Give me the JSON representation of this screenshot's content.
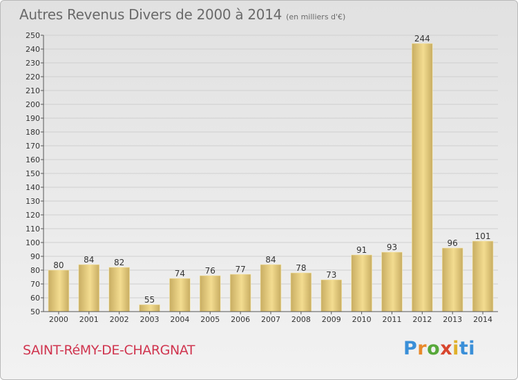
{
  "header": {
    "title": "Autres Revenus Divers de 2000 à 2014",
    "subtitle": "(en milliers d'€)"
  },
  "footer": {
    "commune": "SAINT-RéMY-DE-CHARGNAT",
    "brand": "Proxiti"
  },
  "colors": {
    "bar_light": "#f3dc90",
    "bar_dark": "#c8ad62",
    "grid": "#cfcfcf",
    "axis": "#555555",
    "commune_text": "#d0354f"
  },
  "chart_data": {
    "type": "bar",
    "title": "Autres Revenus Divers de 2000 à 2014",
    "subtitle": "(en milliers d'€)",
    "xlabel": "",
    "ylabel": "",
    "categories": [
      "2000",
      "2001",
      "2002",
      "2003",
      "2004",
      "2005",
      "2006",
      "2007",
      "2008",
      "2009",
      "2010",
      "2011",
      "2012",
      "2013",
      "2014"
    ],
    "values": [
      80,
      84,
      82,
      55,
      74,
      76,
      77,
      84,
      78,
      73,
      91,
      93,
      244,
      96,
      101
    ],
    "ylim": [
      50,
      250
    ],
    "yticks": [
      50,
      60,
      70,
      80,
      90,
      100,
      110,
      120,
      130,
      140,
      150,
      160,
      170,
      180,
      190,
      200,
      210,
      220,
      230,
      240,
      250
    ],
    "grid": true,
    "data_labels": true
  }
}
